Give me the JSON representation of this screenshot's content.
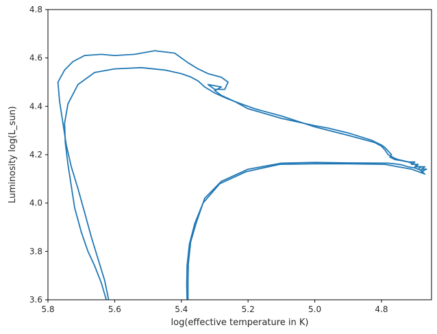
{
  "chart_data": {
    "type": "line",
    "xlabel": "log(effective temperature in K)",
    "ylabel": "Luminosity log(L_sun)",
    "xlim": [
      5.8,
      4.65
    ],
    "ylim": [
      3.6,
      4.8
    ],
    "x_ticks": [
      5.8,
      5.6,
      5.4,
      5.2,
      5.0,
      4.8
    ],
    "y_ticks": [
      3.6,
      3.8,
      4.0,
      4.2,
      4.4,
      4.6,
      4.8
    ],
    "x_tick_labels": [
      "5.8",
      "5.6",
      "5.4",
      "5.2",
      "5.0",
      "4.8"
    ],
    "y_tick_labels": [
      "3.6",
      "3.8",
      "4.0",
      "4.2",
      "4.4",
      "4.6",
      "4.8"
    ],
    "grid": false,
    "color": "#1f77b4",
    "series": [
      {
        "x": [
          5.38,
          5.38,
          5.379,
          5.372,
          5.355,
          5.33,
          5.28,
          5.2,
          5.1,
          5.0,
          4.9,
          4.78,
          4.76,
          4.74,
          4.72,
          4.7,
          4.68,
          4.675,
          4.69,
          4.68,
          4.7,
          4.69,
          4.71,
          4.7,
          4.72,
          4.735,
          4.75,
          4.76,
          4.78,
          4.79,
          4.8,
          4.82,
          4.9,
          5.0,
          5.1,
          5.18,
          5.22,
          5.26,
          5.3,
          5.33,
          5.35,
          5.37,
          5.4,
          5.45,
          5.52,
          5.6,
          5.66,
          5.71,
          5.74,
          5.75,
          5.748,
          5.74,
          5.73,
          5.72,
          5.7,
          5.68,
          5.66,
          5.64,
          5.625
        ],
        "y": [
          3.6,
          3.68,
          3.75,
          3.84,
          3.92,
          4.02,
          4.09,
          4.14,
          4.165,
          4.168,
          4.166,
          4.165,
          4.162,
          4.158,
          4.15,
          4.145,
          4.135,
          4.13,
          4.14,
          4.15,
          4.15,
          4.16,
          4.16,
          4.17,
          4.17,
          4.175,
          4.18,
          4.185,
          4.2,
          4.22,
          4.235,
          4.25,
          4.28,
          4.315,
          4.36,
          4.39,
          4.41,
          4.43,
          4.455,
          4.48,
          4.505,
          4.52,
          4.535,
          4.55,
          4.56,
          4.555,
          4.54,
          4.49,
          4.41,
          4.33,
          4.25,
          4.16,
          4.07,
          3.98,
          3.88,
          3.8,
          3.74,
          3.67,
          3.6
        ]
      },
      {
        "x": [
          5.383,
          5.384,
          5.383,
          5.376,
          5.36,
          5.335,
          5.285,
          5.205,
          5.105,
          5.0,
          4.9,
          4.79,
          4.77,
          4.75,
          4.73,
          4.71,
          4.69,
          4.67,
          4.68,
          4.665,
          4.68,
          4.67,
          4.69,
          4.7,
          4.72,
          4.74,
          4.76,
          4.775,
          4.77,
          4.79,
          4.8,
          4.83,
          4.9,
          4.96,
          5.0,
          5.1,
          5.15,
          5.2,
          5.24,
          5.28,
          5.3,
          5.28,
          5.32,
          5.3,
          5.27,
          5.26,
          5.28,
          5.32,
          5.35,
          5.38,
          5.42,
          5.48,
          5.54,
          5.6,
          5.64,
          5.69,
          5.725,
          5.75,
          5.77,
          5.765,
          5.755,
          5.745,
          5.73,
          5.71,
          5.69,
          5.67,
          5.65,
          5.63,
          5.618
        ],
        "y": [
          3.6,
          3.66,
          3.74,
          3.83,
          3.915,
          4.0,
          4.08,
          4.13,
          4.16,
          4.162,
          4.162,
          4.16,
          4.155,
          4.15,
          4.145,
          4.14,
          4.13,
          4.12,
          4.13,
          4.14,
          4.14,
          4.15,
          4.15,
          4.16,
          4.17,
          4.175,
          4.18,
          4.19,
          4.2,
          4.23,
          4.24,
          4.26,
          4.29,
          4.31,
          4.32,
          4.35,
          4.37,
          4.39,
          4.42,
          4.445,
          4.465,
          4.48,
          4.49,
          4.47,
          4.47,
          4.5,
          4.52,
          4.535,
          4.555,
          4.58,
          4.62,
          4.63,
          4.615,
          4.61,
          4.615,
          4.61,
          4.585,
          4.55,
          4.5,
          4.42,
          4.33,
          4.24,
          4.15,
          4.06,
          3.96,
          3.86,
          3.77,
          3.68,
          3.6
        ]
      }
    ]
  }
}
